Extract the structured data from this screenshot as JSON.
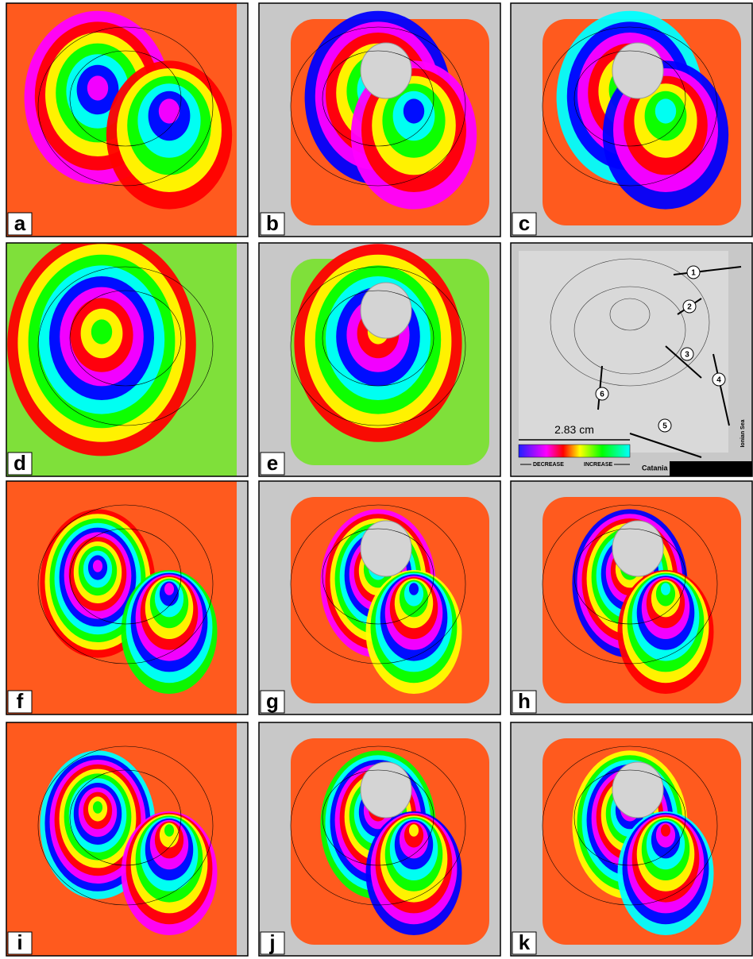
{
  "panels": [
    {
      "label": "a"
    },
    {
      "label": "b"
    },
    {
      "label": "c"
    },
    {
      "label": "d"
    },
    {
      "label": "e"
    },
    {
      "label": "f"
    },
    {
      "label": "g"
    },
    {
      "label": "h"
    },
    {
      "label": "i"
    },
    {
      "label": "j"
    },
    {
      "label": "k"
    }
  ],
  "map": {
    "fault_labels": [
      "1",
      "2",
      "3",
      "4",
      "5",
      "6"
    ],
    "scale_label": "2.83 cm",
    "decrease": "DECREASE",
    "increase": "INCREASE",
    "city": "Catania",
    "sea": "Ionian Sea"
  }
}
